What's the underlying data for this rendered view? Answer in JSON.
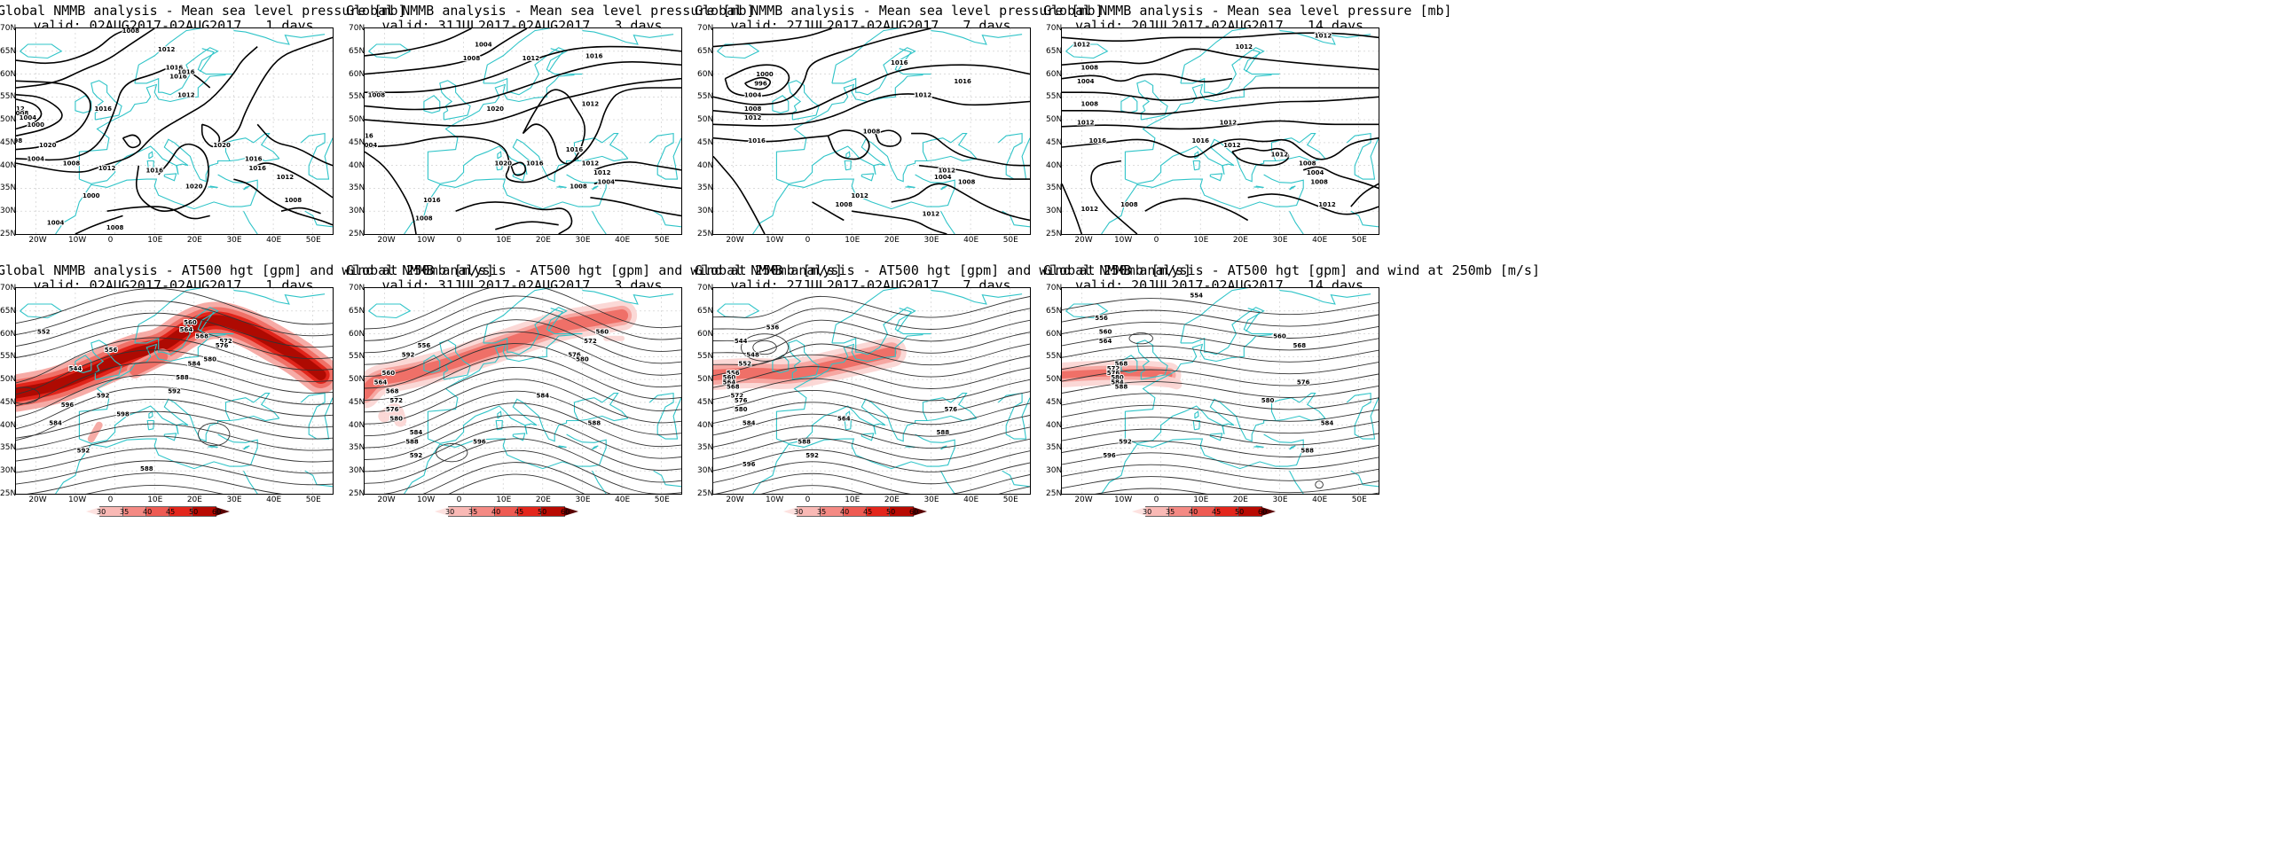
{
  "lat_labels": [
    "70N",
    "65N",
    "60N",
    "55N",
    "50N",
    "45N",
    "40N",
    "35N",
    "30N",
    "25N"
  ],
  "lon_labels": [
    "20W",
    "10W",
    "0",
    "10E",
    "20E",
    "30E",
    "40E",
    "50E"
  ],
  "colorbar": {
    "labels": [
      "30",
      "35",
      "40",
      "45",
      "50",
      "60"
    ],
    "colors": [
      "#fde2e0",
      "#f9b9b5",
      "#f48a84",
      "#ee5b53",
      "#e3261c",
      "#b80a02",
      "#5a0000"
    ]
  },
  "colors": {
    "coast": "#2fc4c8",
    "contour": "#000000",
    "jet": "#e3261c"
  },
  "top_title": "Global NMMB analysis - Mean sea level pressure [mb]",
  "bottom_title": "Global NMMB analysis - AT500 hgt [gpm] and wind at 250mb [m/s]",
  "panels": [
    {
      "valid": "valid: 02AUG2017-02AUG2017   1 days",
      "mslp_labels": [
        "1008",
        "1012",
        "1016",
        "1016",
        "1020",
        "1016",
        "1012",
        "1008",
        "1004",
        "1000",
        "998",
        "1004",
        "1008",
        "1012",
        "1016",
        "1020",
        "1016",
        "1016",
        "1012",
        "1008",
        "1004",
        "1000",
        "1008",
        "1012",
        "1016",
        "1020"
      ],
      "hgt_labels": [
        "560",
        "564",
        "568",
        "572",
        "576",
        "580",
        "584",
        "588",
        "592",
        "596",
        "598",
        "592",
        "552",
        "556",
        "584",
        "592",
        "544",
        "588"
      ]
    },
    {
      "valid": "valid: 31JUL2017-02AUG2017   3 days",
      "mslp_labels": [
        "1004",
        "1008",
        "1012",
        "1016",
        "1020",
        "1012",
        "1008",
        "1004",
        "1016",
        "1020",
        "1016",
        "1016",
        "1012",
        "1012",
        "1008",
        "1004",
        "1016",
        "1008",
        "1012"
      ],
      "hgt_labels": [
        "552",
        "556",
        "560",
        "564",
        "568",
        "572",
        "576",
        "580",
        "584",
        "588",
        "592",
        "596",
        "560",
        "572",
        "576",
        "580",
        "584",
        "588",
        "592"
      ]
    },
    {
      "valid": "valid: 27JUL2017-02AUG2017   7 days",
      "mslp_labels": [
        "996",
        "1000",
        "1004",
        "1008",
        "1012",
        "1016",
        "1016",
        "1016",
        "1012",
        "1008",
        "1004",
        "1012",
        "1008",
        "1012",
        "1008",
        "1012"
      ],
      "hgt_labels": [
        "536",
        "544",
        "548",
        "552",
        "556",
        "560",
        "564",
        "568",
        "572",
        "576",
        "580",
        "584",
        "588",
        "592",
        "596",
        "564",
        "576",
        "588"
      ]
    },
    {
      "valid": "valid: 20JUL2017-02AUG2017   14 days",
      "mslp_labels": [
        "1012",
        "1012",
        "1012",
        "1008",
        "1004",
        "1008",
        "1012",
        "1016",
        "1016",
        "1012",
        "1012",
        "1012",
        "1008",
        "1004",
        "1008",
        "1012",
        "1008",
        "1012"
      ],
      "hgt_labels": [
        "554",
        "556",
        "560",
        "564",
        "568",
        "572",
        "576",
        "580",
        "584",
        "588",
        "592",
        "596",
        "560",
        "568",
        "576",
        "580",
        "584",
        "588"
      ]
    }
  ]
}
